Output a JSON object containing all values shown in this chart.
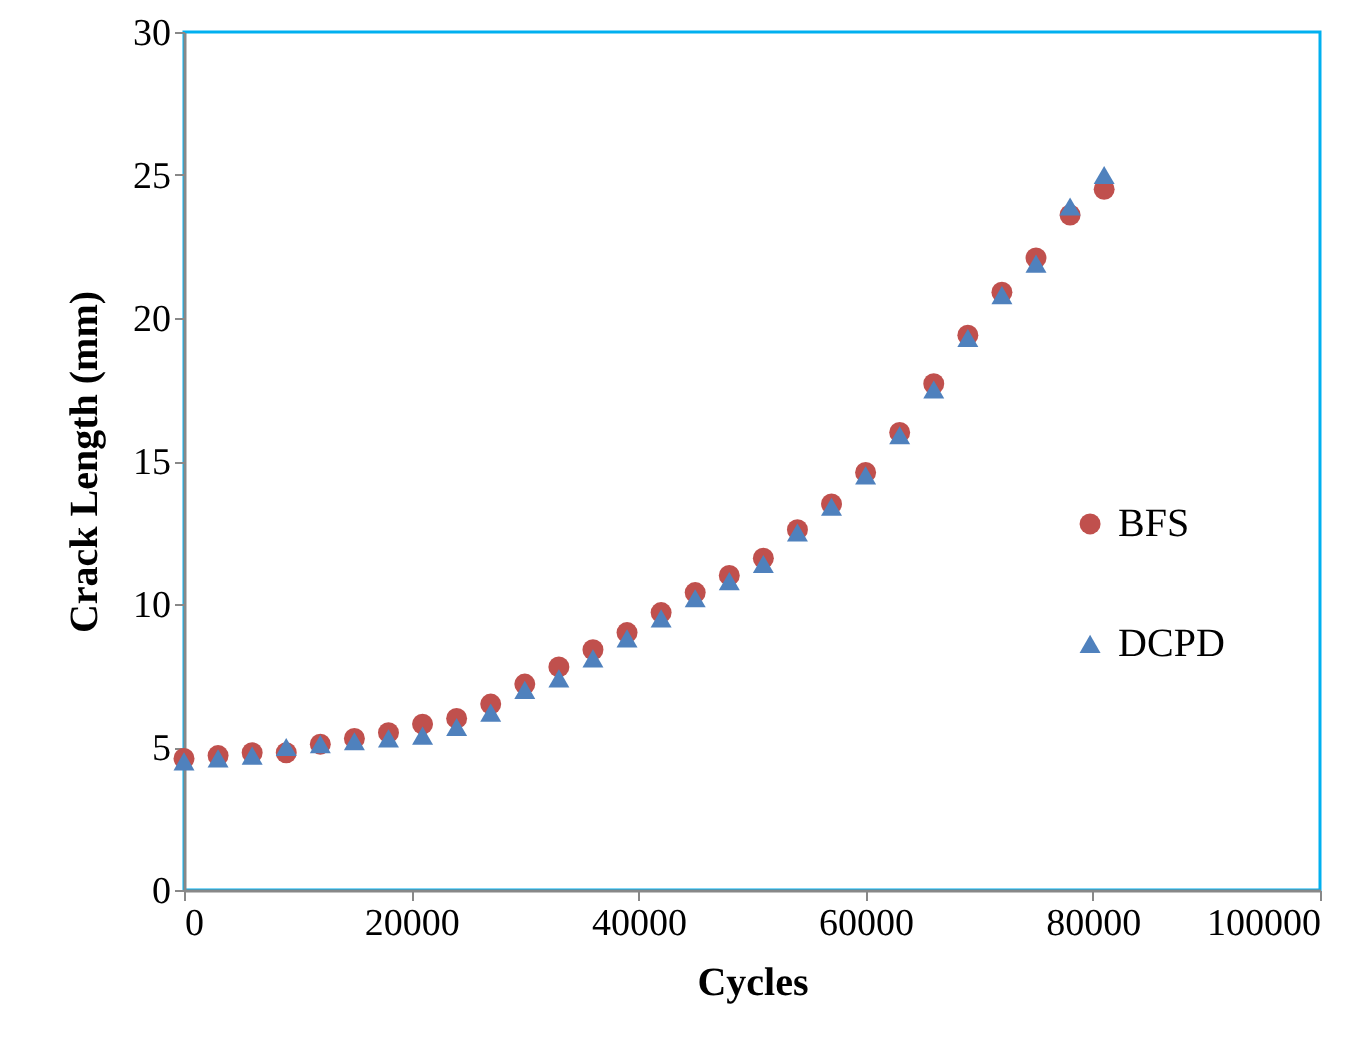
{
  "chart_data": {
    "type": "scatter",
    "xlabel": "Cycles",
    "ylabel": "Crack Length (mm)",
    "x": [
      0,
      3000,
      6000,
      9000,
      12000,
      15000,
      18000,
      21000,
      24000,
      27000,
      30000,
      33000,
      36000,
      39000,
      42000,
      45000,
      48000,
      51000,
      54000,
      57000,
      60000,
      63000,
      66000,
      69000,
      72000,
      75000,
      78000,
      81000
    ],
    "series": [
      {
        "name": "BFS",
        "color": "#c0504d",
        "marker": "circle",
        "values": [
          4.6,
          4.7,
          4.8,
          4.8,
          5.1,
          5.3,
          5.5,
          5.8,
          6.0,
          6.5,
          7.2,
          7.8,
          8.4,
          9.0,
          9.7,
          10.4,
          11.0,
          11.6,
          12.6,
          13.5,
          14.6,
          16.0,
          17.7,
          19.4,
          20.9,
          22.1,
          23.6,
          24.5
        ]
      },
      {
        "name": "DCPD",
        "color": "#4f81bd",
        "marker": "triangle",
        "values": [
          4.5,
          4.6,
          4.7,
          5.0,
          5.1,
          5.2,
          5.3,
          5.4,
          5.7,
          6.2,
          7.0,
          7.4,
          8.1,
          8.8,
          9.5,
          10.2,
          10.8,
          11.4,
          12.5,
          13.4,
          14.5,
          15.9,
          17.5,
          19.3,
          20.8,
          21.9,
          23.9,
          25.0
        ]
      }
    ],
    "xlim": [
      0,
      100000
    ],
    "xticks": [
      0,
      20000,
      40000,
      60000,
      80000,
      100000
    ],
    "ylim": [
      0,
      30
    ],
    "yticks": [
      0,
      5,
      10,
      15,
      20,
      25,
      30
    ],
    "grid": false,
    "legend": "right"
  }
}
